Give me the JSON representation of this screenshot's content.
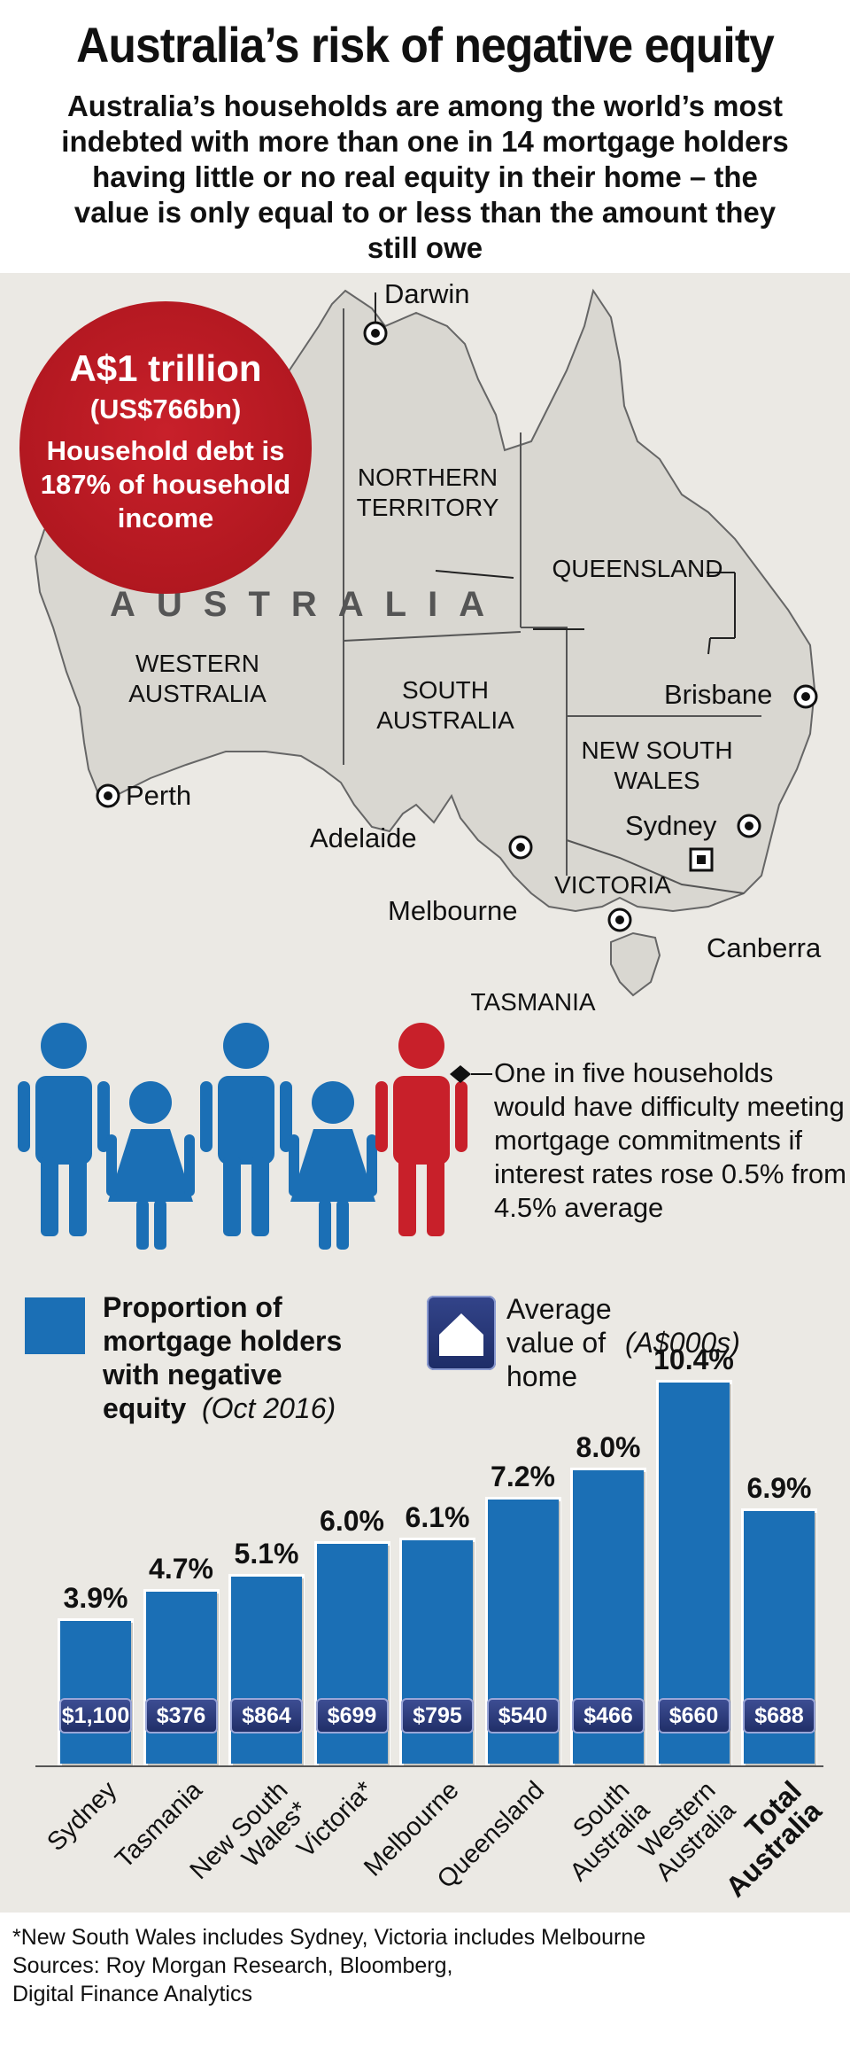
{
  "title": "Australia’s risk of negative equity",
  "subtitle": "Australia’s households are among the world’s most indebted with more than one in 14 mortgage holders having little or no real equity in their home – the value is only equal to or less than the amount they still owe",
  "map": {
    "country_label": "AUSTRALIA",
    "regions": {
      "northern_territory": "NORTHERN TERRITORY",
      "queensland": "QUEENSLAND",
      "western_australia": "WESTERN AUSTRALIA",
      "south_australia": "SOUTH AUSTRALIA",
      "new_south_wales": "NEW SOUTH WALES",
      "victoria": "VICTORIA",
      "tasmania": "TASMANIA"
    },
    "cities": {
      "darwin": "Darwin",
      "brisbane": "Brisbane",
      "perth": "Perth",
      "adelaide": "Adelaide",
      "sydney": "Sydney",
      "melbourne": "Melbourne",
      "canberra": "Canberra"
    },
    "land_color": "#d9d7d1",
    "border_color": "#555555"
  },
  "debt_circle": {
    "amount": "A$1 trillion",
    "usd": "(US$766bn)",
    "description": "Household debt is 187% of household income",
    "color": "#b3161e"
  },
  "households": {
    "callout": "One in five households would have difficulty meeting mortgage commitments if interest rates rose 0.5% from 4.5% average",
    "blue_color": "#1b6fb5",
    "red_color": "#c8202a",
    "icons": [
      "man-icon",
      "woman-icon",
      "man-icon",
      "woman-icon",
      "man-icon-highlighted"
    ]
  },
  "legend": {
    "bars_label": "Proportion of mortgage holders with negative equity",
    "bars_period": "(Oct 2016)",
    "home_label": "Average value of home",
    "home_unit": "(A$000s)"
  },
  "chart_data": {
    "type": "bar",
    "title": "",
    "categories": [
      "Sydney",
      "Tasmania",
      "New South Wales*",
      "Victoria*",
      "Melbourne",
      "Queensland",
      "South Australia",
      "Western Australia",
      "Total Australia"
    ],
    "category_lines": [
      [
        "Sydney"
      ],
      [
        "Tasmania"
      ],
      [
        "New South",
        "Wales*"
      ],
      [
        "Victoria*"
      ],
      [
        "Melbourne"
      ],
      [
        "Queensland"
      ],
      [
        "South",
        "Australia"
      ],
      [
        "Western",
        "Australia"
      ],
      [
        "Total",
        "Australia"
      ]
    ],
    "series": [
      {
        "name": "Proportion of mortgage holders with negative equity",
        "unit": "%",
        "values": [
          3.9,
          4.7,
          5.1,
          6.0,
          6.1,
          7.2,
          8.0,
          10.4,
          6.9
        ]
      }
    ],
    "value_labels": [
      "3.9%",
      "4.7%",
      "5.1%",
      "6.0%",
      "6.1%",
      "7.2%",
      "8.0%",
      "10.4%",
      "6.9%"
    ],
    "home_values": [
      "$1,100",
      "$376",
      "$864",
      "$699",
      "$795",
      "$540",
      "$466",
      "$660",
      "$688"
    ],
    "ylim": [
      0,
      10.4
    ],
    "grid": false,
    "bar_color": "#1b6fb5"
  },
  "footnote": {
    "note": "*New South Wales includes Sydney, Victoria includes Melbourne",
    "sources": "Sources: Roy Morgan Research, Bloomberg,",
    "sources2": "Digital Finance Analytics"
  }
}
